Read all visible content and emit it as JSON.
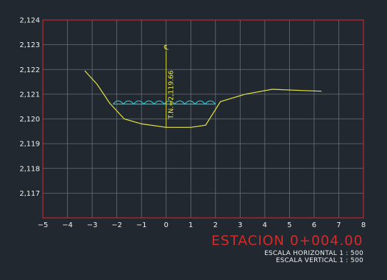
{
  "chart_data": {
    "type": "line",
    "title": "ESTACION 0+004.00",
    "subtitle_lines": [
      "ESCALA HORIZONTAL 1 : 500",
      "ESCALA VERTICAL 1 : 500"
    ],
    "xlim": [
      -5,
      8
    ],
    "ylim": [
      2116,
      2124
    ],
    "xticks": [
      -5,
      -4,
      -3,
      -2,
      -1,
      0,
      1,
      2,
      3,
      4,
      5,
      6,
      7,
      8
    ],
    "xtick_labels": [
      "−5",
      "−4",
      "−3",
      "−2",
      "−1",
      "0",
      "1",
      "2",
      "3",
      "4",
      "5",
      "6",
      "7",
      "8"
    ],
    "yticks": [
      2117,
      2118,
      2119,
      2120,
      2121,
      2122,
      2123,
      2124
    ],
    "ytick_labels": [
      "2,117",
      "2,118",
      "2,119",
      "2,120",
      "2,121",
      "2,122",
      "2,123",
      "2,124"
    ],
    "grid": true,
    "centerline": {
      "x": 0,
      "symbol": "℄",
      "label": "T.N.=2,119.66"
    },
    "series": [
      {
        "color": "#e8e840",
        "points": [
          [
            -3.3,
            2121.95
          ],
          [
            -2.8,
            2121.4
          ],
          [
            -2.3,
            2120.65
          ],
          [
            -1.7,
            2120.0
          ],
          [
            -1.0,
            2119.8
          ],
          [
            0.0,
            2119.66
          ],
          [
            1.0,
            2119.66
          ],
          [
            1.6,
            2119.75
          ],
          [
            2.2,
            2120.7
          ],
          [
            3.2,
            2121.0
          ],
          [
            4.3,
            2121.2
          ],
          [
            5.5,
            2121.15
          ],
          [
            6.3,
            2121.12
          ]
        ]
      }
    ],
    "water_surface": {
      "elevation": 2120.6,
      "x_start": -2.15,
      "x_end": 2.0,
      "color": "#2fd8e0"
    },
    "colors": {
      "background": "#212830",
      "frame": "#c0282a",
      "grid": "#6b7078",
      "ground": "#e8e840",
      "water": "#2fd8e0",
      "title": "#d42a2a",
      "text": "#f2f2f2"
    }
  }
}
